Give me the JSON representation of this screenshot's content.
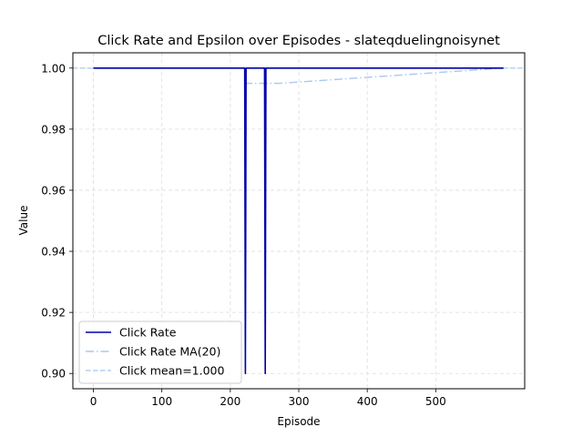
{
  "chart_data": {
    "type": "line",
    "title": "Click Rate and Epsilon over Episodes - slateqduelingnoisynet",
    "xlabel": "Episode",
    "ylabel": "Value",
    "xlim": [
      -30,
      630
    ],
    "ylim": [
      0.895,
      1.005
    ],
    "xticks": [
      0,
      100,
      200,
      300,
      400,
      500
    ],
    "yticks": [
      0.9,
      0.92,
      0.94,
      0.96,
      0.98,
      1.0
    ],
    "ytick_labels": [
      "0.90",
      "0.92",
      "0.94",
      "0.96",
      "0.98",
      "1.00"
    ],
    "grid": true,
    "legend_position": "lower-left",
    "series": [
      {
        "name": "Click Rate",
        "color": "#0000aa",
        "style": "solid",
        "x": [
          0,
          221,
          222,
          223,
          250,
          251,
          252,
          599
        ],
        "y": [
          1.0,
          1.0,
          0.9,
          1.0,
          1.0,
          0.9,
          1.0,
          1.0
        ]
      },
      {
        "name": "Click Rate MA(20)",
        "color": "#a8c8f0",
        "style": "dashdot",
        "x": [
          0,
          221,
          222,
          242,
          251,
          252,
          271,
          599
        ],
        "y": [
          1.0,
          1.0,
          0.995,
          0.995,
          0.995,
          0.995,
          0.995,
          1.0
        ]
      },
      {
        "name": "Click mean=1.000",
        "color": "#b0cff2",
        "style": "dashed",
        "x": [
          -30,
          630
        ],
        "y": [
          1.0,
          1.0
        ]
      }
    ]
  }
}
